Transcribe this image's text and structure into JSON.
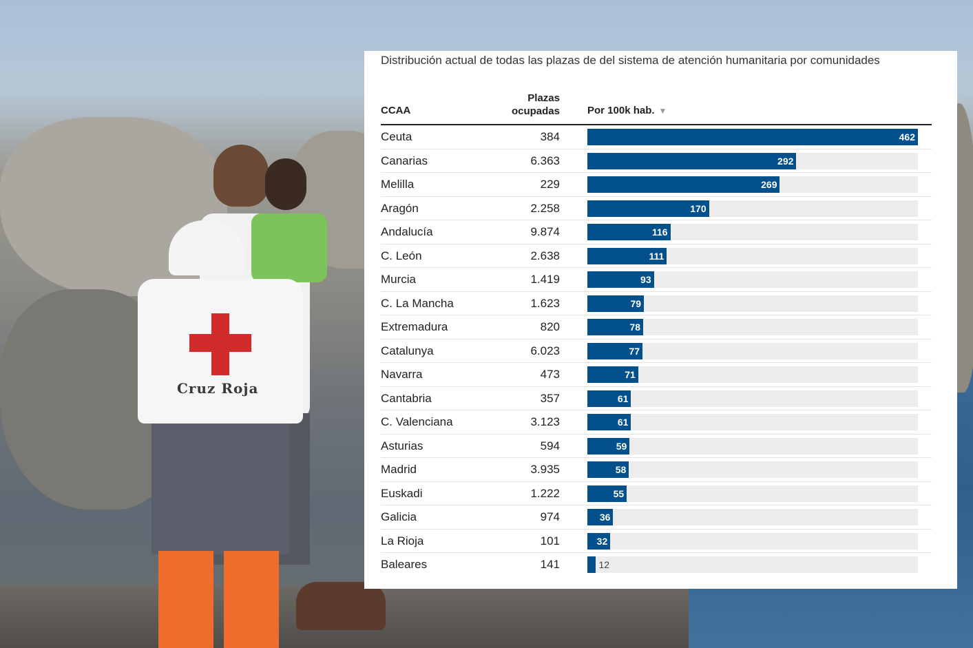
{
  "chart_data": {
    "type": "bar",
    "title": "Distribución actual de todas las plazas de del sistema de atención humanitaria por comunidades",
    "columns": {
      "name": "CCAA",
      "plazas_line1": "Plazas",
      "plazas_line2": "ocupadas",
      "rate": "Por 100k hab."
    },
    "sort_icon": "sort-descending-icon",
    "bar_color": "#02508c",
    "track_color": "#ececec",
    "xlim": [
      0,
      462
    ],
    "rows": [
      {
        "name": "Ceuta",
        "plazas": "384",
        "value": 462
      },
      {
        "name": "Canarias",
        "plazas": "6.363",
        "value": 292
      },
      {
        "name": "Melilla",
        "plazas": "229",
        "value": 269
      },
      {
        "name": "Aragón",
        "plazas": "2.258",
        "value": 170
      },
      {
        "name": "Andalucía",
        "plazas": "9.874",
        "value": 116
      },
      {
        "name": "C. León",
        "plazas": "2.638",
        "value": 111
      },
      {
        "name": "Murcia",
        "plazas": "1.419",
        "value": 93
      },
      {
        "name": "C. La Mancha",
        "plazas": "1.623",
        "value": 79
      },
      {
        "name": "Extremadura",
        "plazas": "820",
        "value": 78
      },
      {
        "name": "Catalunya",
        "plazas": "6.023",
        "value": 77
      },
      {
        "name": "Navarra",
        "plazas": "473",
        "value": 71
      },
      {
        "name": "Cantabria",
        "plazas": "357",
        "value": 61
      },
      {
        "name": "C. Valenciana",
        "plazas": "3.123",
        "value": 61
      },
      {
        "name": "Asturias",
        "plazas": "594",
        "value": 59
      },
      {
        "name": "Madrid",
        "plazas": "3.935",
        "value": 58
      },
      {
        "name": "Euskadi",
        "plazas": "1.222",
        "value": 55
      },
      {
        "name": "Galicia",
        "plazas": "974",
        "value": 36
      },
      {
        "name": "La Rioja",
        "plazas": "101",
        "value": 32
      },
      {
        "name": "Baleares",
        "plazas": "141",
        "value": 12
      }
    ]
  },
  "background": {
    "description_icon": "photo-icon",
    "vest_text": "Cruz Roja"
  }
}
